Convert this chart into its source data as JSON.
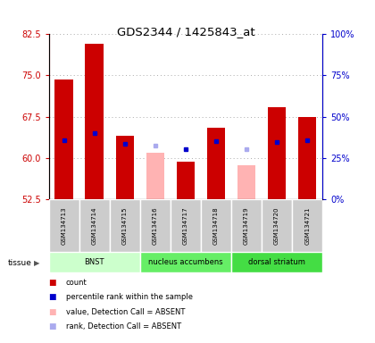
{
  "title": "GDS2344 / 1425843_at",
  "samples": [
    "GSM134713",
    "GSM134714",
    "GSM134715",
    "GSM134716",
    "GSM134717",
    "GSM134718",
    "GSM134719",
    "GSM134720",
    "GSM134721"
  ],
  "red_bars": [
    74.2,
    80.8,
    64.0,
    null,
    59.3,
    65.5,
    null,
    69.2,
    67.5
  ],
  "pink_bars": [
    null,
    null,
    null,
    60.9,
    null,
    null,
    58.6,
    null,
    null
  ],
  "blue_dots": [
    63.2,
    64.5,
    62.5,
    null,
    61.5,
    63.0,
    null,
    62.8,
    63.2
  ],
  "lavender_dots": [
    null,
    null,
    null,
    62.2,
    null,
    null,
    61.5,
    null,
    null
  ],
  "tissues": [
    {
      "label": "BNST",
      "start": 0,
      "end": 2,
      "color": "#ccffcc"
    },
    {
      "label": "nucleus accumbens",
      "start": 3,
      "end": 5,
      "color": "#66ee66"
    },
    {
      "label": "dorsal striatum",
      "start": 6,
      "end": 8,
      "color": "#44dd44"
    }
  ],
  "ylim_left": [
    52.5,
    82.5
  ],
  "ylim_right": [
    0,
    100
  ],
  "left_ticks": [
    52.5,
    60.0,
    67.5,
    75.0,
    82.5
  ],
  "right_ticks": [
    0,
    25,
    50,
    75,
    100
  ],
  "left_color": "#cc0000",
  "right_color": "#0000cc",
  "bar_color": "#cc0000",
  "pink_color": "#ffb3b3",
  "blue_color": "#0000cc",
  "lavender_color": "#aaaaee",
  "grid_color": "#aaaaaa",
  "sample_box_color": "#cccccc",
  "legend_items": [
    "count",
    "percentile rank within the sample",
    "value, Detection Call = ABSENT",
    "rank, Detection Call = ABSENT"
  ],
  "legend_colors": [
    "#cc0000",
    "#0000cc",
    "#ffb3b3",
    "#aaaaee"
  ]
}
